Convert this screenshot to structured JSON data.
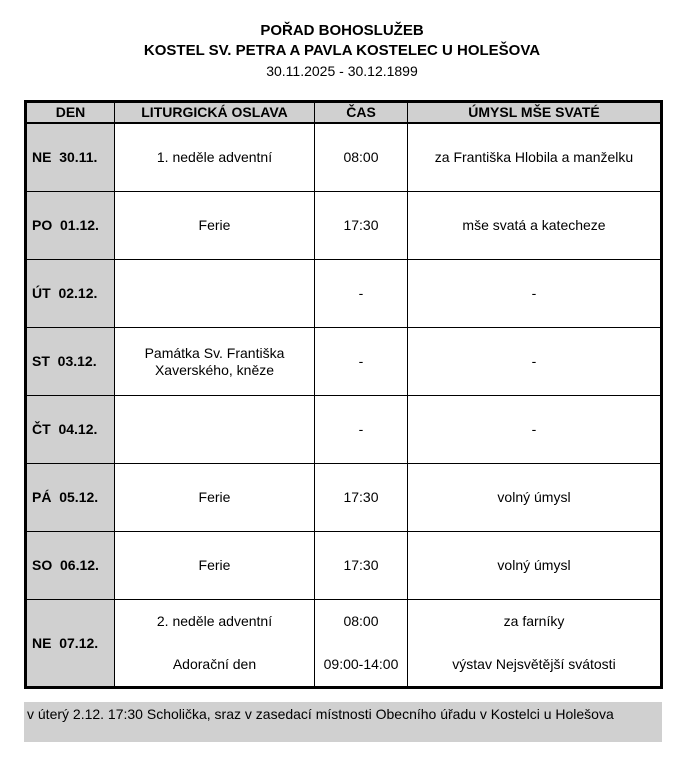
{
  "header": {
    "title": "POŘAD BOHOSLUŽEB",
    "church": "KOSTEL SV. PETRA A PAVLA KOSTELEC U HOLEŠOVA",
    "date_range": "30.11.2025 - 30.12.1899"
  },
  "table": {
    "columns": [
      "DEN",
      "LITURGICKÁ OSLAVA",
      "ČAS",
      "ÚMYSL MŠE SVATÉ"
    ],
    "rows": [
      {
        "day": "NE  30.11.",
        "liturgy": [
          "1. neděle adventní"
        ],
        "time": [
          "08:00"
        ],
        "intention": [
          "za Františka Hlobila a manželku"
        ]
      },
      {
        "day": "PO  01.12.",
        "liturgy": [
          "Ferie"
        ],
        "time": [
          "17:30"
        ],
        "intention": [
          "mše svatá a katecheze"
        ]
      },
      {
        "day": "ÚT  02.12.",
        "liturgy": [
          ""
        ],
        "time": [
          "-"
        ],
        "intention": [
          "-"
        ]
      },
      {
        "day": "ST  03.12.",
        "liturgy": [
          "Památka Sv. Františka",
          "Xaverského, kněze"
        ],
        "time": [
          "-"
        ],
        "intention": [
          "-"
        ]
      },
      {
        "day": "ČT  04.12.",
        "liturgy": [
          ""
        ],
        "time": [
          "-"
        ],
        "intention": [
          "-"
        ]
      },
      {
        "day": "PÁ  05.12.",
        "liturgy": [
          "Ferie"
        ],
        "time": [
          "17:30"
        ],
        "intention": [
          "volný úmysl"
        ]
      },
      {
        "day": "SO  06.12.",
        "liturgy": [
          "Ferie"
        ],
        "time": [
          "17:30"
        ],
        "intention": [
          "volný úmysl"
        ]
      },
      {
        "day": "NE  07.12.",
        "liturgy": [
          "2. neděle adventní",
          "Adorační den"
        ],
        "time": [
          "08:00",
          "09:00-14:00"
        ],
        "intention": [
          "za farníky",
          "výstav Nejsvětější svátosti"
        ],
        "split": true
      }
    ]
  },
  "note": "v úterý 2.12. 17:30 Scholička, sraz v zasedací místnosti Obecního úřadu v Kostelci u Holešova"
}
